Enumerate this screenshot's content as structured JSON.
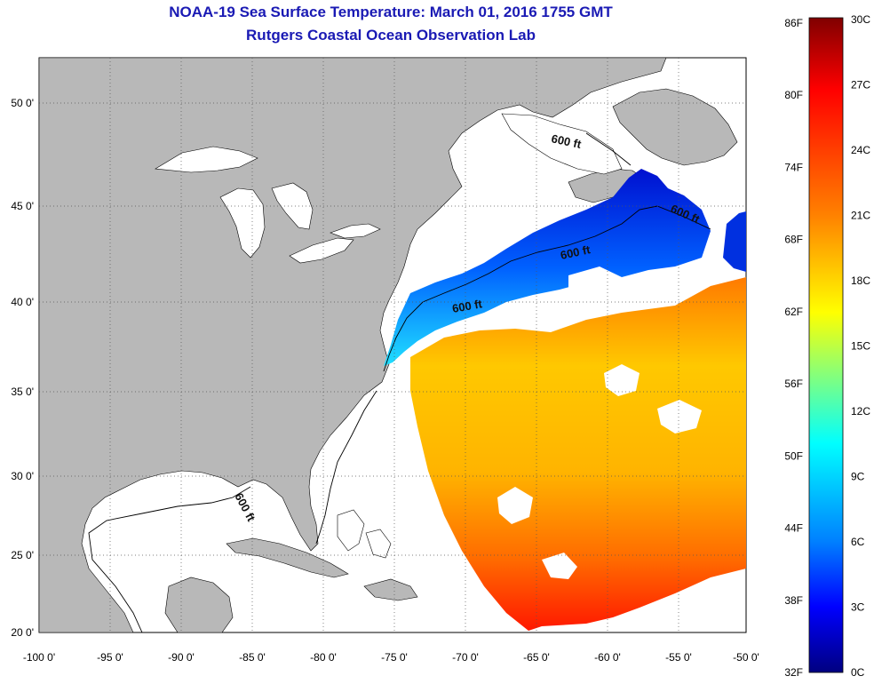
{
  "header": {
    "title": "NOAA-19 Sea Surface Temperature:  March 01, 2016 1755 GMT",
    "subtitle": "Rutgers Coastal Ocean Observation Lab"
  },
  "map": {
    "lon_ticks": [
      "-100 0'",
      "-95 0'",
      "-90 0'",
      "-85 0'",
      "-80 0'",
      "-75 0'",
      "-70 0'",
      "-65 0'",
      "-60 0'",
      "-55 0'",
      "-50 0'"
    ],
    "lat_ticks": [
      "50 0'",
      "45 0'",
      "40 0'",
      "35 0'",
      "30 0'",
      "25 0'",
      "20 0'"
    ],
    "contour_label": "600 ft"
  },
  "colorbar": {
    "f_labels": [
      "86F",
      "80F",
      "74F",
      "68F",
      "62F",
      "56F",
      "50F",
      "44F",
      "38F",
      "32F"
    ],
    "c_labels": [
      "30C",
      "27C",
      "24C",
      "21C",
      "18C",
      "15C",
      "12C",
      "9C",
      "6C",
      "3C",
      "0C"
    ]
  },
  "colors": {
    "land": "#b8b8b8",
    "title": "#1a1ab4",
    "colormap": [
      "#800000",
      "#ff0000",
      "#ff8000",
      "#ffff00",
      "#80ff80",
      "#00ffff",
      "#0080ff",
      "#0000ff",
      "#000080"
    ]
  }
}
